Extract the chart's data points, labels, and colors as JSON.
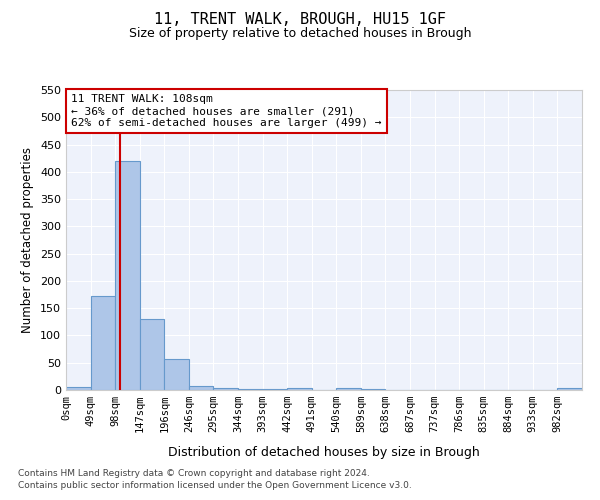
{
  "title1": "11, TRENT WALK, BROUGH, HU15 1GF",
  "title2": "Size of property relative to detached houses in Brough",
  "xlabel": "Distribution of detached houses by size in Brough",
  "ylabel": "Number of detached properties",
  "bar_categories": [
    "0sqm",
    "49sqm",
    "98sqm",
    "147sqm",
    "196sqm",
    "246sqm",
    "295sqm",
    "344sqm",
    "393sqm",
    "442sqm",
    "491sqm",
    "540sqm",
    "589sqm",
    "638sqm",
    "687sqm",
    "737sqm",
    "786sqm",
    "835sqm",
    "884sqm",
    "933sqm",
    "982sqm"
  ],
  "bar_values": [
    5,
    173,
    420,
    130,
    57,
    8,
    3,
    1,
    1,
    3,
    0,
    4,
    1,
    0,
    0,
    0,
    0,
    0,
    0,
    0,
    3
  ],
  "bar_color": "#aec6e8",
  "bar_edgecolor": "#6699cc",
  "bar_linewidth": 0.8,
  "property_line_x": 108,
  "property_line_color": "#cc0000",
  "ylim": [
    0,
    550
  ],
  "yticks": [
    0,
    50,
    100,
    150,
    200,
    250,
    300,
    350,
    400,
    450,
    500,
    550
  ],
  "annotation_text": "11 TRENT WALK: 108sqm\n← 36% of detached houses are smaller (291)\n62% of semi-detached houses are larger (499) →",
  "annotation_boxcolor": "white",
  "annotation_edgecolor": "#cc0000",
  "footnote1": "Contains HM Land Registry data © Crown copyright and database right 2024.",
  "footnote2": "Contains public sector information licensed under the Open Government Licence v3.0.",
  "background_color": "#eef2fb",
  "grid_color": "#ffffff",
  "bin_width": 49
}
